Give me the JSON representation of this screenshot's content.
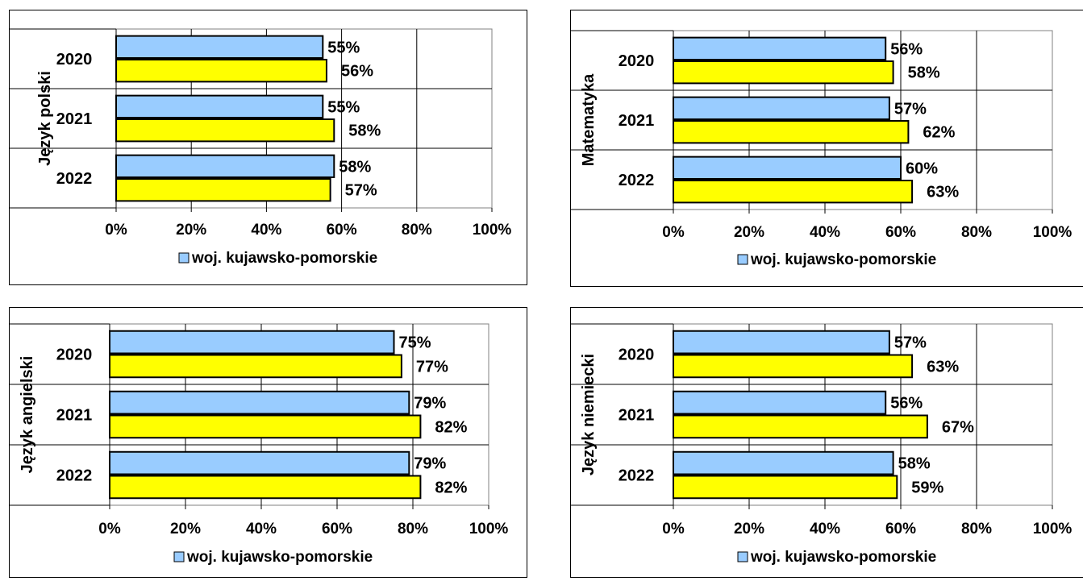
{
  "colors": {
    "series_1": "#99ccff",
    "series_2": "#ffff00",
    "border": "#000000",
    "grid": "#000000"
  },
  "legend_label": "woj. kujawsko-pomorskie",
  "chart_data": [
    {
      "type": "bar",
      "orientation": "horizontal",
      "ylabel": "Język polski",
      "categories": [
        "2020",
        "2021",
        "2022"
      ],
      "series": [
        {
          "name": "woj. kujawsko-pomorskie",
          "values": [
            55,
            55,
            58
          ]
        },
        {
          "values": [
            56,
            58,
            57
          ]
        }
      ],
      "xlim": [
        0,
        100
      ],
      "xticks": [
        "0%",
        "20%",
        "40%",
        "60%",
        "80%",
        "100%"
      ],
      "legend": "bottom"
    },
    {
      "type": "bar",
      "orientation": "horizontal",
      "ylabel": "Matematyka",
      "categories": [
        "2020",
        "2021",
        "2022"
      ],
      "series": [
        {
          "name": "woj. kujawsko-pomorskie",
          "values": [
            56,
            57,
            60
          ]
        },
        {
          "values": [
            58,
            62,
            63
          ]
        }
      ],
      "xlim": [
        0,
        100
      ],
      "xticks": [
        "0%",
        "20%",
        "40%",
        "60%",
        "80%",
        "100%"
      ],
      "legend": "bottom"
    },
    {
      "type": "bar",
      "orientation": "horizontal",
      "ylabel": "Język angielski",
      "categories": [
        "2020",
        "2021",
        "2022"
      ],
      "series": [
        {
          "name": "woj. kujawsko-pomorskie",
          "values": [
            75,
            79,
            79
          ]
        },
        {
          "values": [
            77,
            82,
            82
          ]
        }
      ],
      "xlim": [
        0,
        100
      ],
      "xticks": [
        "0%",
        "20%",
        "40%",
        "60%",
        "80%",
        "100%"
      ],
      "legend": "bottom"
    },
    {
      "type": "bar",
      "orientation": "horizontal",
      "ylabel": "Język niemiecki",
      "categories": [
        "2020",
        "2021",
        "2022"
      ],
      "series": [
        {
          "name": "woj. kujawsko-pomorskie",
          "values": [
            57,
            56,
            58
          ]
        },
        {
          "values": [
            63,
            67,
            59
          ]
        }
      ],
      "xlim": [
        0,
        100
      ],
      "xticks": [
        "0%",
        "20%",
        "40%",
        "60%",
        "80%",
        "100%"
      ],
      "legend": "bottom"
    }
  ]
}
